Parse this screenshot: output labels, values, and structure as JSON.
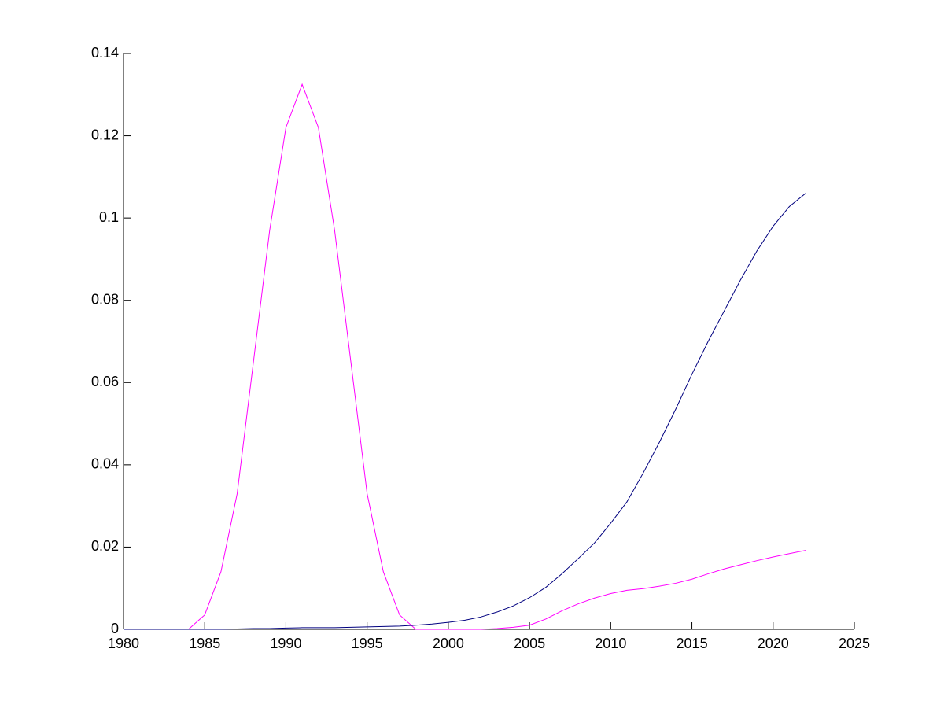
{
  "chart_data": {
    "type": "line",
    "x": [
      1980,
      1981,
      1982,
      1983,
      1984,
      1985,
      1986,
      1987,
      1988,
      1989,
      1990,
      1991,
      1992,
      1993,
      1994,
      1995,
      1996,
      1997,
      1998,
      1999,
      2000,
      2001,
      2002,
      2003,
      2004,
      2005,
      2006,
      2007,
      2008,
      2009,
      2010,
      2011,
      2012,
      2013,
      2014,
      2015,
      2016,
      2017,
      2018,
      2019,
      2020,
      2021,
      2022
    ],
    "series": [
      {
        "color": "#ff00ff",
        "values": [
          0,
          0,
          0,
          0,
          0,
          0.0035,
          0.014,
          0.033,
          0.065,
          0.097,
          0.122,
          0.1325,
          0.122,
          0.097,
          0.065,
          0.033,
          0.014,
          0.0035,
          0,
          0,
          0,
          0,
          0,
          0.0002,
          0.0005,
          0.001,
          0.0025,
          0.0045,
          0.0062,
          0.0076,
          0.0087,
          0.0095,
          0.0099,
          0.0105,
          0.0112,
          0.0122,
          0.0135,
          0.0147,
          0.0157,
          0.0167,
          0.0176,
          0.0184,
          0.0192
        ]
      },
      {
        "color": "#00007f",
        "values": [
          0,
          0,
          0,
          0,
          0,
          0,
          0,
          0.0001,
          0.0002,
          0.0002,
          0.0003,
          0.0004,
          0.0004,
          0.0004,
          0.0005,
          0.0006,
          0.0007,
          0.0008,
          0.001,
          0.0013,
          0.0017,
          0.0022,
          0.003,
          0.0042,
          0.0057,
          0.0077,
          0.0102,
          0.0135,
          0.0172,
          0.021,
          0.0258,
          0.031,
          0.038,
          0.0455,
          0.0535,
          0.062,
          0.07,
          0.0775,
          0.085,
          0.092,
          0.098,
          0.1028,
          0.106
        ]
      }
    ],
    "xlim": [
      1980,
      2025
    ],
    "xticks": [
      1980,
      1985,
      1990,
      1995,
      2000,
      2005,
      2010,
      2015,
      2020,
      2025
    ],
    "ylim": [
      0,
      0.14
    ],
    "yticks": [
      0,
      0.02,
      0.04,
      0.06,
      0.08,
      0.1,
      0.12,
      0.14
    ],
    "grid": false
  }
}
